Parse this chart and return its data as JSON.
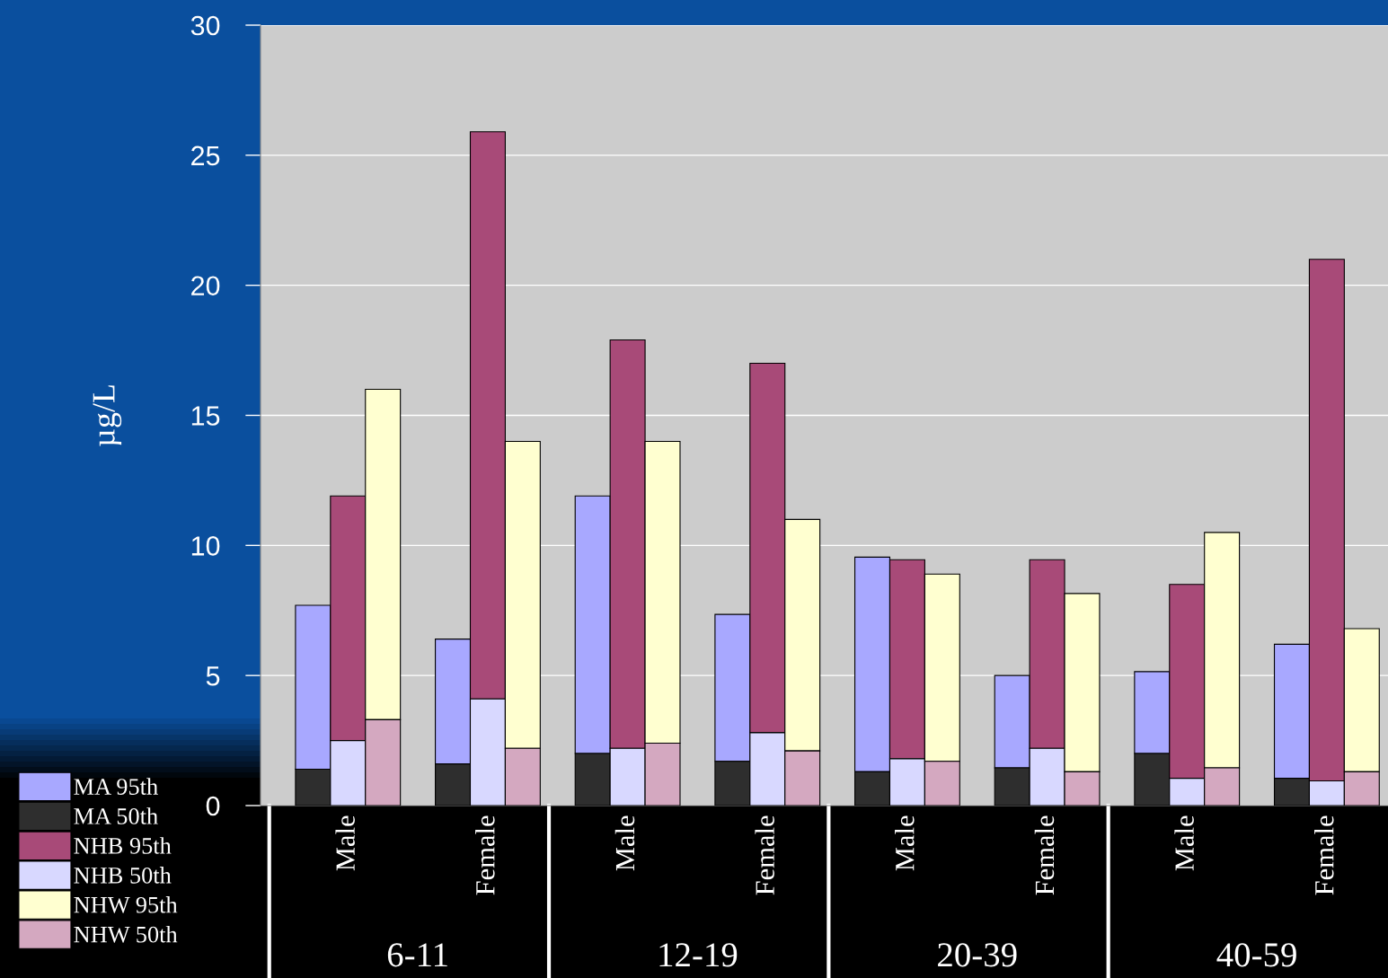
{
  "chart_data": {
    "type": "bar",
    "ylabel": "µg/L",
    "categories": [
      null,
      null,
      "Male",
      null,
      null,
      null,
      "Female",
      null,
      null,
      null,
      "Male",
      null,
      null,
      null,
      "Female",
      null,
      null,
      null,
      "Male",
      null,
      null,
      null,
      "Female",
      null,
      null,
      null,
      "Male",
      null,
      null,
      null,
      "Female",
      null
    ],
    "series": [
      {
        "name": "MA 95th",
        "color": "#a8a8ff",
        "base": [
          null,
          1.4,
          null,
          null,
          null,
          1.6,
          null,
          null,
          null,
          2.0,
          null,
          null,
          null,
          1.7,
          null,
          null,
          null,
          1.3,
          null,
          null,
          null,
          1.45,
          null,
          null,
          null,
          2.0,
          null,
          null,
          null,
          1.05,
          null,
          null
        ],
        "values": [
          null,
          6.3,
          null,
          null,
          null,
          4.8,
          null,
          null,
          null,
          9.9,
          null,
          null,
          null,
          5.65,
          null,
          null,
          null,
          8.25,
          null,
          null,
          null,
          3.55,
          null,
          null,
          null,
          3.15,
          null,
          null,
          null,
          5.15,
          null,
          null
        ]
      },
      {
        "name": "MA 50th",
        "color": "#2e2e2e",
        "values": [
          null,
          1.4,
          null,
          null,
          null,
          1.6,
          null,
          null,
          null,
          2.0,
          null,
          null,
          null,
          1.7,
          null,
          null,
          null,
          1.3,
          null,
          null,
          null,
          1.45,
          null,
          null,
          null,
          2.0,
          null,
          null,
          null,
          1.05,
          null,
          null
        ]
      },
      {
        "name": "NHB 95th",
        "color": "#a84a78",
        "base": [
          null,
          null,
          2.5,
          null,
          null,
          null,
          4.1,
          null,
          null,
          null,
          2.2,
          null,
          null,
          null,
          2.8,
          null,
          null,
          null,
          1.8,
          null,
          null,
          null,
          2.2,
          null,
          null,
          null,
          1.05,
          null,
          null,
          null,
          0.95,
          null
        ],
        "values": [
          null,
          null,
          9.4,
          null,
          null,
          null,
          21.8,
          null,
          null,
          null,
          15.7,
          null,
          null,
          null,
          14.2,
          null,
          null,
          null,
          7.65,
          null,
          null,
          null,
          7.25,
          null,
          null,
          null,
          7.45,
          null,
          null,
          null,
          20.05,
          null
        ]
      },
      {
        "name": "NHB 50th",
        "color": "#d8d8ff",
        "values": [
          null,
          null,
          2.5,
          null,
          null,
          null,
          4.1,
          null,
          null,
          null,
          2.2,
          null,
          null,
          null,
          2.8,
          null,
          null,
          null,
          1.8,
          null,
          null,
          null,
          2.2,
          null,
          null,
          null,
          1.05,
          null,
          null,
          null,
          0.95,
          null
        ]
      },
      {
        "name": "NHW 95th",
        "color": "#ffffd0",
        "base": [
          null,
          null,
          null,
          3.3,
          null,
          null,
          null,
          2.2,
          null,
          null,
          null,
          2.4,
          null,
          null,
          null,
          2.1,
          null,
          null,
          null,
          1.7,
          null,
          null,
          null,
          1.3,
          null,
          null,
          null,
          1.45,
          null,
          null,
          null,
          1.3
        ],
        "values": [
          null,
          null,
          null,
          12.7,
          null,
          null,
          null,
          11.8,
          null,
          null,
          null,
          11.6,
          null,
          null,
          null,
          8.9,
          null,
          null,
          null,
          7.2,
          null,
          null,
          null,
          6.85,
          null,
          null,
          null,
          9.05,
          null,
          null,
          null,
          5.5
        ]
      },
      {
        "name": "NHW 50th",
        "color": "#d4a8c0",
        "values": [
          null,
          null,
          null,
          3.3,
          null,
          null,
          null,
          2.2,
          null,
          null,
          null,
          2.4,
          null,
          null,
          null,
          2.1,
          null,
          null,
          null,
          1.7,
          null,
          null,
          null,
          1.3,
          null,
          null,
          null,
          1.45,
          null,
          null,
          null,
          1.3
        ]
      }
    ],
    "annotations": [
      "6-11",
      "12-19",
      "20-39",
      "40-59"
    ],
    "ylim": [
      0,
      30
    ],
    "yticks": [
      0,
      5,
      10,
      15,
      20,
      25,
      30
    ],
    "grid": "y",
    "legend": "bottom left"
  }
}
